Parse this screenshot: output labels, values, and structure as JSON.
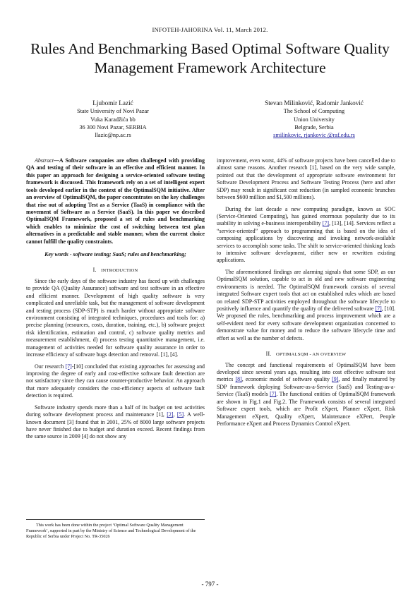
{
  "header": "INFOTEH-JAHORINA Vol. 11, March 2012.",
  "title": "Rules And Benchmarking Based Optimal Software Quality Management Framework Architecture",
  "authors": {
    "left": {
      "name": "Ljubomir Lazić",
      "affiliation": "State University of Novi Pazar",
      "street": "Vuka Karadžića bb",
      "city": "36 300 Novi Pazar, SERBIA",
      "email": "llazic@np.ac.rs"
    },
    "right": {
      "name": "Stevan Milinković, Radomir Janković",
      "affiliation": "The School of Computing",
      "university": "Union University",
      "city": "Belgrade, Serbia",
      "email": "smilinkovic, rjankovic @raf.edu.rs"
    }
  },
  "abstract": {
    "label": "Abstract",
    "text": "—A Software companies are often challenged with providing QA and testing of their software in an effective and efficient manner. In this paper an approach for designing a service-oriented software testing framework is discussed. This framework rely on a set of intelligent expert tools devoloped earlier in the context of the OptimalSQM initiative. After an overview of OptimalSQM, the paper concentrates on the key challenges that rise out of adopting Test as a Service (TaaS) in compliance with the movement of Software as a Service (SaaS). In this paper we described OptimalSQM Framework, proposed a set of rules and benchmarking which enables to minimize the cost of switching between test plan alternatives in a predictable and stable manner, when the current choice cannot fulfill the quality constraints."
  },
  "keywords": "Key words - software testing; SaaS; rules and benchmarking;",
  "section1": {
    "number": "I.",
    "title": "Introduction",
    "p1": "Since the early days of the software industry has faced up with challenges to provide QA (Quality Assurance) software and test software in an effective and efficient manner. Development of high quality software is very complicated and unreliable task, but the management of software development and testing process (SDP-STP) is much harder without appropriate software environment consisting of integrated techniques, procedures and tools for: a) precise planning (resources, costs, duration, training, etc.), b) software project risk identification, estimation and control, c) software quality metrics and measurement establishment, d) process testing quantitative management, i.e. management of activities needed for software quality assurance in order to increase efficiency of software bugs detection and removal. [1], [4].",
    "p2_pre": "Our research ",
    "p2_cite": "[7]",
    "p2_post": "-[10] concluded that existing approaches for assessing and improving the degree of early and cost-effective software fault detection are not satisfactory since they can cause counter-productive behavior. An approach that more adequately considers the cost-efficiency aspects of software fault detection is required.",
    "p3_a": "Software industry spends more than a half of its budget on test activities during software development process and maintenance [1], ",
    "p3_c1": "[2]",
    "p3_b": ", ",
    "p3_c2": "[5]",
    "p3_c": ". A well-known document [3] found that in 2001, 25% of 8000 large software projects have never finished due to budget and duration exceed. Recent findings from the same source in 2009 [4] do not show any"
  },
  "right_col": {
    "p1": "improvement, even worst, 44% of software projects have been cancelled due to almost same reasons. Another research [1], based on the very wide sample, pointed out that the development of appropriate software environment for Software Development Process and Software Testing Process (here and after SDP) may result in significant cost reduction (in sampled economic brunches between $600 million and $1,500 millions).",
    "p2_a": "During the last decade a new computing paradigm, known as SOC (Service-Oriented Computing), has gained enormous popularity due to its usability in solving e-business interoperability ",
    "p2_c1": "[7]",
    "p2_b": ", [13], [14]. Services reflect a “service-oriented” approach to programming that is based on the idea of composing applications by discovering and invoking network-available services to accomplish some tasks. The shift to service-oriented thinking leads to intensive software development, either new or rewritten existing applications.",
    "p3_a": "The aforementioned findings are alarming signals that some SDP, as our OptimalSQM solution, capable to act in old and new software engineering environments is needed. The OptimalSQM framework consists of several integrated Software expert tools that act on established rules which are based on related SDP-STP activities employed throughout the software lifecycle to positively influence and quantify the quality of the delivered software ",
    "p3_c1": "[7]",
    "p3_b": ", [10]. We proposed the rules, benchmarking and process improvement which are a self-evident need for every software development organization concerned to demonstrate value for money and to reduce the software lifecycle time and effort as well as the number of defects."
  },
  "section2": {
    "number": "II.",
    "title": "OptimalSQM - An Overview",
    "p1_a": "The concept and functional requirements of OptimalSQM have been developed since several years ago, resulting into cost effective software test metrics ",
    "p1_c1": "[8]",
    "p1_b": ", economic model of software quality ",
    "p1_c2": "[9]",
    "p1_c": ", and finally matured by SDP framework deploying Software-as-a-Service (SaaS) and Testing-as-a-Service (TaaS) models ",
    "p1_c3": "[7]",
    "p1_d": ". The functional entities of OptimalSQM framework are shown in Fig.1 and Fig.2. The Framework consists of several integrated Software expert tools, which are Profit eXpert, Planner eXpert, Risk Management eXpert, Quality eXpert, Maintenance eXPert, People Performance eXpert and Process Dynamics Control eXpert."
  },
  "footnote": "This work has been done within the project ‘Optimal Software Quality Management Framework’, supported in part by the Ministry of Science and Technological Development of the Republic of Serbia under Project No. TR-35026",
  "page_number": "- 797 -"
}
